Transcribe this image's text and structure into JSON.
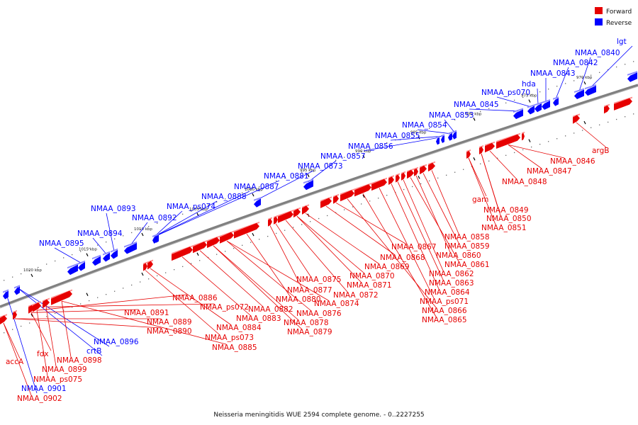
{
  "caption": "Neisseria meningitidis WUE 2594 complete genome. - 0..2227255",
  "legend": {
    "forward": {
      "label": "Forward",
      "color": "#e60000"
    },
    "reverse": {
      "label": "Reverse",
      "color": "#0000ff"
    }
  },
  "colors": {
    "forward": "#e60000",
    "reverse": "#0000ff",
    "backbone": "#8c8c8c"
  },
  "axis": {
    "ticks": [
      {
        "label": "970 kbp",
        "kb": 970
      },
      {
        "label": "975 kbp",
        "kb": 975
      },
      {
        "label": "980 kbp",
        "kb": 980
      },
      {
        "label": "985 kbp",
        "kb": 985
      },
      {
        "label": "990 kbp",
        "kb": 990
      },
      {
        "label": "995 kbp",
        "kb": 995
      },
      {
        "label": "1000 kbp",
        "kb": 1000
      },
      {
        "label": "1005 kbp",
        "kb": 1005
      },
      {
        "label": "1010 kbp",
        "kb": 1010
      },
      {
        "label": "1015 kbp",
        "kb": 1015
      },
      {
        "label": "1020 kbp",
        "kb": 1020
      }
    ]
  },
  "reverse_labels": [
    "lgt",
    "NMAA_0840",
    "NMAA_0842",
    "NMAA_0843",
    "hda",
    "NMAA_ps070",
    "NMAA_0845",
    "NMAA_0853",
    "NMAA_0854",
    "NMAA_0855",
    "NMAA_0856",
    "NMAA_0857",
    "NMAA_0873",
    "NMAA_0881",
    "NMAA_0887",
    "NMAA_0888",
    "NMAA_ps074",
    "NMAA_0892",
    "NMAA_0893",
    "NMAA_0894",
    "NMAA_0895",
    "NMAA_0896",
    "crtB",
    "NMAA_0901"
  ],
  "forward_labels": [
    "argB",
    "NMAA_0846",
    "NMAA_0847",
    "NMAA_0848",
    "gam",
    "NMAA_0849",
    "NMAA_0850",
    "NMAA_0851",
    "NMAA_0858",
    "NMAA_0859",
    "NMAA_0860",
    "NMAA_0861",
    "NMAA_0862",
    "NMAA_0863",
    "NMAA_0864",
    "NMAA_ps071",
    "NMAA_0865",
    "NMAA_0866",
    "NMAA_0867",
    "NMAA_0868",
    "NMAA_0869",
    "NMAA_0870",
    "NMAA_0871",
    "NMAA_0872",
    "NMAA_0875",
    "NMAA_0877",
    "NMAA_0880",
    "NMAA_0874",
    "NMAA_0876",
    "NMAA_0878",
    "NMAA_0879",
    "NMAA_0882",
    "NMAA_0883",
    "NMAA_0884",
    "NMAA_ps073",
    "NMAA_0885",
    "NMAA_ps072",
    "NMAA_0886",
    "NMAA_0891",
    "NMAA_0889",
    "NMAA_0890",
    "NMAA_0898",
    "NMAA_0899",
    "NMAA_ps075",
    "fdx",
    "accA",
    "NMAA_0902"
  ]
}
